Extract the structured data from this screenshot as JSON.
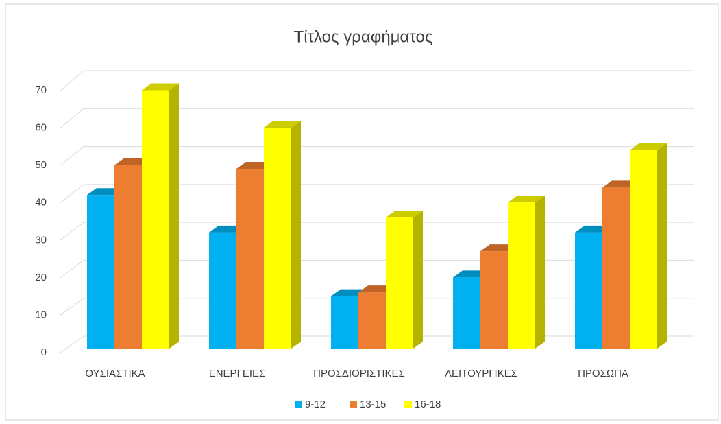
{
  "chart_data": {
    "type": "bar3d",
    "title": "Τίτλος γραφήματος",
    "categories": [
      "ΟΥΣΙΑΣΤΙΚΑ",
      "ΕΝΕΡΓΕΙΕΣ",
      "ΠΡΟΣΔΙΟΡΙΣΤΙΚΕΣ",
      "ΛΕΙΤΟΥΡΓΙΚΕΣ",
      "ΠΡΟΣΩΠΑ"
    ],
    "series": [
      {
        "name": "9-12",
        "color": "#00b0f0",
        "values": [
          41,
          31,
          14,
          19,
          31
        ]
      },
      {
        "name": "13-15",
        "color": "#ed7d31",
        "values": [
          49,
          48,
          15,
          26,
          43
        ]
      },
      {
        "name": "16-18",
        "color": "#ffff00",
        "values": [
          69,
          59,
          35,
          39,
          53
        ]
      }
    ],
    "ylim": [
      0,
      70
    ],
    "yticks": [
      0,
      10,
      20,
      30,
      40,
      50,
      60,
      70
    ],
    "grid": true,
    "legend": "bottom"
  }
}
